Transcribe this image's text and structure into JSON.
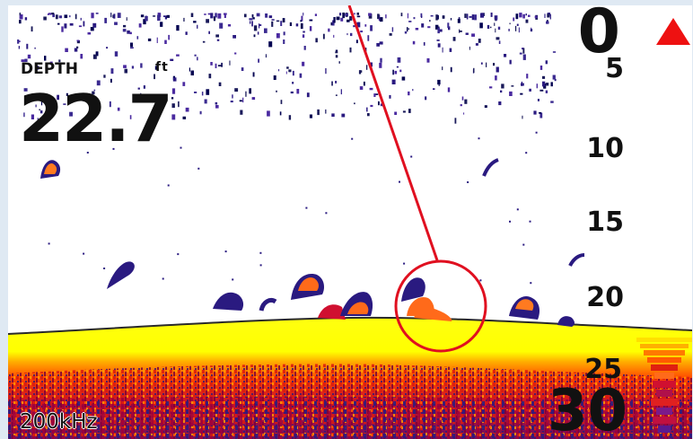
{
  "depth": {
    "label": "DEPTH",
    "unit": "ft",
    "value": "22.7"
  },
  "frequency": {
    "label": "200kHz"
  },
  "depth_scale": {
    "top": "0",
    "ticks": [
      "5",
      "10",
      "15",
      "20",
      "25"
    ],
    "bottom": "30"
  },
  "icons": {
    "alarm": "red-triangle-icon",
    "highlight": "red-circle-callout-icon"
  },
  "colors": {
    "bottom_strong": "#ffff00",
    "bottom_mid": "#ff5a00",
    "bottom_deep": "#b30030",
    "clutter": "#2a1a7a",
    "fish_arch_core": "#ff6a1a",
    "callout": "#e01020",
    "background": "#ffffff"
  }
}
